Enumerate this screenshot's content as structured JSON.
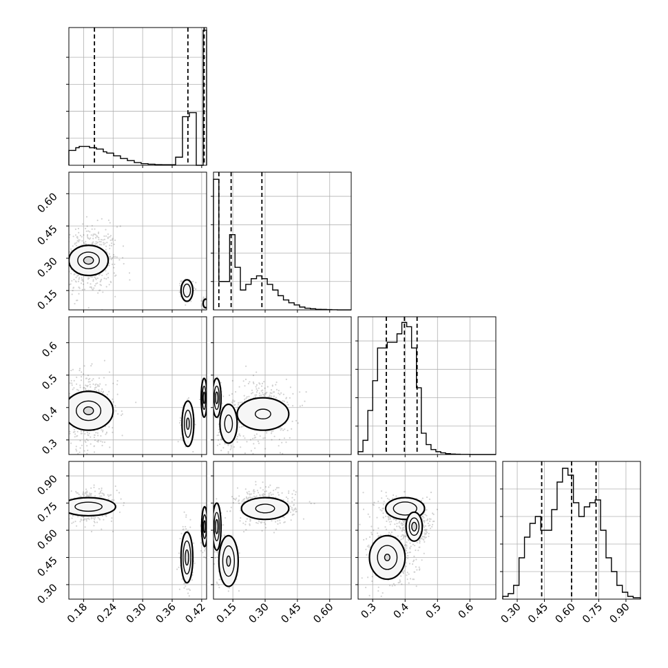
{
  "chart_data": {
    "type": "corner",
    "title": "",
    "n_params": 4,
    "grid": true,
    "params": [
      {
        "range": [
          0.15,
          0.43
        ],
        "ticks": [
          0.18,
          0.24,
          0.3,
          0.36,
          0.42
        ],
        "tick_labels": [
          "0.18",
          "0.24",
          "0.30",
          "0.36",
          "0.42"
        ],
        "quantiles": [
          0.202,
          0.392,
          0.425
        ],
        "hist": {
          "edges": [
            0.15,
            0.157,
            0.164,
            0.171,
            0.178,
            0.185,
            0.192,
            0.199,
            0.206,
            0.213,
            0.22,
            0.227,
            0.234,
            0.241,
            0.248,
            0.255,
            0.262,
            0.269,
            0.276,
            0.283,
            0.29,
            0.297,
            0.304,
            0.311,
            0.318,
            0.325,
            0.332,
            0.339,
            0.346,
            0.353,
            0.36,
            0.367,
            0.374,
            0.381,
            0.388,
            0.395,
            0.402,
            0.409,
            0.416,
            0.423,
            0.43
          ],
          "counts": [
            0.11,
            0.11,
            0.13,
            0.14,
            0.14,
            0.14,
            0.13,
            0.13,
            0.12,
            0.12,
            0.1,
            0.09,
            0.09,
            0.07,
            0.07,
            0.05,
            0.05,
            0.035,
            0.035,
            0.02,
            0.02,
            0.012,
            0.012,
            0.008,
            0.008,
            0.005,
            0.005,
            0.004,
            0.004,
            0.004,
            0.004,
            0.06,
            0.06,
            0.36,
            0.36,
            0.39,
            0.39,
            0.0,
            0.0,
            1.0
          ],
          "ymax": 1.02
        }
      },
      {
        "range": [
          0.06,
          0.7
        ],
        "ticks": [
          0.15,
          0.3,
          0.45,
          0.6
        ],
        "tick_labels": [
          "0.15",
          "0.30",
          "0.45",
          "0.60"
        ],
        "quantiles": [
          0.085,
          0.142,
          0.285
        ],
        "hist": {
          "edges": [
            0.06,
            0.085,
            0.11,
            0.135,
            0.16,
            0.185,
            0.21,
            0.235,
            0.26,
            0.285,
            0.31,
            0.335,
            0.36,
            0.385,
            0.41,
            0.435,
            0.46,
            0.485,
            0.51,
            0.535,
            0.56,
            0.585,
            0.61,
            0.635,
            0.66,
            0.685,
            0.7
          ],
          "counts": [
            0.92,
            0.2,
            0.2,
            0.53,
            0.3,
            0.14,
            0.18,
            0.22,
            0.24,
            0.22,
            0.18,
            0.14,
            0.1,
            0.07,
            0.05,
            0.035,
            0.02,
            0.012,
            0.008,
            0.004,
            0.003,
            0.002,
            0.001,
            0.0,
            0.0,
            0.0
          ],
          "ymax": 0.97
        }
      },
      {
        "range": [
          0.255,
          0.68
        ],
        "ticks": [
          0.3,
          0.4,
          0.5,
          0.6
        ],
        "tick_labels": [
          "0.3",
          "0.4",
          "0.5",
          "0.6"
        ],
        "quantiles": [
          0.342,
          0.398,
          0.437
        ],
        "hist": {
          "edges": [
            0.255,
            0.27,
            0.285,
            0.3,
            0.315,
            0.33,
            0.345,
            0.36,
            0.375,
            0.39,
            0.405,
            0.42,
            0.435,
            0.45,
            0.465,
            0.48,
            0.495,
            0.51,
            0.525,
            0.54,
            0.555,
            0.57,
            0.585,
            0.6,
            0.615,
            0.68
          ],
          "counts": [
            0.02,
            0.1,
            0.31,
            0.52,
            0.75,
            0.75,
            0.79,
            0.79,
            0.85,
            0.93,
            0.9,
            0.75,
            0.47,
            0.15,
            0.07,
            0.035,
            0.02,
            0.012,
            0.006,
            0.003,
            0.002,
            0.001,
            0.001,
            0.0,
            0.0
          ],
          "ymax": 0.97
        }
      },
      {
        "range": [
          0.22,
          0.98
        ],
        "ticks": [
          0.3,
          0.45,
          0.6,
          0.75,
          0.9
        ],
        "tick_labels": [
          "0.30",
          "0.45",
          "0.60",
          "0.75",
          "0.90"
        ],
        "quantiles": [
          0.435,
          0.6,
          0.735
        ],
        "hist": {
          "edges": [
            0.22,
            0.25,
            0.28,
            0.31,
            0.34,
            0.37,
            0.4,
            0.43,
            0.46,
            0.49,
            0.52,
            0.55,
            0.58,
            0.61,
            0.64,
            0.67,
            0.7,
            0.73,
            0.76,
            0.79,
            0.82,
            0.85,
            0.88,
            0.91,
            0.94,
            0.98
          ],
          "counts": [
            0.02,
            0.04,
            0.1,
            0.3,
            0.45,
            0.55,
            0.6,
            0.5,
            0.5,
            0.65,
            0.85,
            0.95,
            0.9,
            0.7,
            0.6,
            0.67,
            0.7,
            0.72,
            0.5,
            0.3,
            0.2,
            0.1,
            0.05,
            0.02,
            0.01
          ],
          "ymax": 1.0
        }
      }
    ],
    "hist_y_ticks": [
      0.2,
      0.4,
      0.6,
      0.8
    ],
    "pairs": [
      {
        "row": 1,
        "col": 0,
        "clusters": [
          {
            "center": [
              0.19,
              0.29
            ],
            "sd": [
              0.03,
              0.08
            ],
            "weight": 1.0
          },
          {
            "center": [
              0.39,
              0.16
            ],
            "sd": [
              0.006,
              0.02
            ],
            "weight": 0.35
          },
          {
            "center": [
              0.427,
              0.09
            ],
            "sd": [
              0.003,
              0.012
            ],
            "weight": 0.4
          }
        ],
        "contours": [
          {
            "center": [
              0.19,
              0.29
            ],
            "r": [
              0.04,
              0.07
            ],
            "levels": [
              1,
              0.55,
              0.25
            ]
          },
          {
            "center": [
              0.39,
              0.15
            ],
            "r": [
              0.012,
              0.05
            ],
            "levels": [
              1,
              0.6
            ]
          },
          {
            "center": [
              0.428,
              0.09
            ],
            "r": [
              0.005,
              0.02
            ],
            "levels": [
              1
            ]
          }
        ]
      },
      {
        "row": 2,
        "col": 0,
        "clusters": [
          {
            "center": [
              0.19,
              0.39
            ],
            "sd": [
              0.03,
              0.06
            ],
            "weight": 1.0
          },
          {
            "center": [
              0.39,
              0.35
            ],
            "sd": [
              0.006,
              0.03
            ],
            "weight": 0.4
          },
          {
            "center": [
              0.425,
              0.43
            ],
            "sd": [
              0.003,
              0.02
            ],
            "weight": 0.5
          }
        ],
        "contours": [
          {
            "center": [
              0.19,
              0.39
            ],
            "r": [
              0.05,
              0.06
            ],
            "levels": [
              1,
              0.5,
              0.2
            ]
          },
          {
            "center": [
              0.392,
              0.35
            ],
            "r": [
              0.012,
              0.07
            ],
            "levels": [
              1,
              0.6,
              0.25
            ]
          },
          {
            "center": [
              0.425,
              0.43
            ],
            "r": [
              0.006,
              0.06
            ],
            "levels": [
              1,
              0.6,
              0.3
            ]
          }
        ]
      },
      {
        "row": 2,
        "col": 1,
        "clusters": [
          {
            "center": [
              0.29,
              0.39
            ],
            "sd": [
              0.07,
              0.05
            ],
            "weight": 0.9
          },
          {
            "center": [
              0.12,
              0.34
            ],
            "sd": [
              0.02,
              0.035
            ],
            "weight": 0.5
          },
          {
            "center": [
              0.075,
              0.43
            ],
            "sd": [
              0.01,
              0.025
            ],
            "weight": 0.6
          }
        ],
        "contours": [
          {
            "center": [
              0.29,
              0.38
            ],
            "r": [
              0.12,
              0.05
            ],
            "levels": [
              1,
              0.3
            ]
          },
          {
            "center": [
              0.13,
              0.35
            ],
            "r": [
              0.04,
              0.06
            ],
            "levels": [
              1,
              0.45
            ]
          },
          {
            "center": [
              0.075,
              0.43
            ],
            "r": [
              0.02,
              0.06
            ],
            "levels": [
              1,
              0.6,
              0.3
            ]
          }
        ]
      },
      {
        "row": 3,
        "col": 0,
        "clusters": [
          {
            "center": [
              0.19,
              0.73
            ],
            "sd": [
              0.03,
              0.04
            ],
            "weight": 1.0
          },
          {
            "center": [
              0.39,
              0.46
            ],
            "sd": [
              0.006,
              0.08
            ],
            "weight": 0.45
          },
          {
            "center": [
              0.426,
              0.61
            ],
            "sd": [
              0.003,
              0.05
            ],
            "weight": 0.55
          }
        ],
        "contours": [
          {
            "center": [
              0.19,
              0.73
            ],
            "r": [
              0.055,
              0.05
            ],
            "levels": [
              1,
              0.5
            ]
          },
          {
            "center": [
              0.39,
              0.45
            ],
            "r": [
              0.012,
              0.14
            ],
            "levels": [
              1,
              0.65,
              0.3
            ]
          },
          {
            "center": [
              0.426,
              0.62
            ],
            "r": [
              0.006,
              0.11
            ],
            "levels": [
              1,
              0.6,
              0.3
            ]
          }
        ]
      },
      {
        "row": 3,
        "col": 1,
        "clusters": [
          {
            "center": [
              0.3,
              0.73
            ],
            "sd": [
              0.07,
              0.05
            ],
            "weight": 0.9
          },
          {
            "center": [
              0.12,
              0.44
            ],
            "sd": [
              0.025,
              0.07
            ],
            "weight": 0.55
          },
          {
            "center": [
              0.075,
              0.62
            ],
            "sd": [
              0.01,
              0.05
            ],
            "weight": 0.6
          }
        ],
        "contours": [
          {
            "center": [
              0.3,
              0.72
            ],
            "r": [
              0.11,
              0.06
            ],
            "levels": [
              1,
              0.4
            ]
          },
          {
            "center": [
              0.13,
              0.43
            ],
            "r": [
              0.045,
              0.14
            ],
            "levels": [
              1,
              0.6,
              0.2
            ]
          },
          {
            "center": [
              0.075,
              0.62
            ],
            "r": [
              0.02,
              0.13
            ],
            "levels": [
              1,
              0.6,
              0.3
            ]
          }
        ]
      },
      {
        "row": 3,
        "col": 2,
        "clusters": [
          {
            "center": [
              0.36,
              0.45
            ],
            "sd": [
              0.04,
              0.09
            ],
            "weight": 0.8
          },
          {
            "center": [
              0.4,
              0.7
            ],
            "sd": [
              0.04,
              0.05
            ],
            "weight": 0.7
          },
          {
            "center": [
              0.43,
              0.62
            ],
            "sd": [
              0.02,
              0.04
            ],
            "weight": 0.8
          }
        ],
        "contours": [
          {
            "center": [
              0.345,
              0.45
            ],
            "r": [
              0.055,
              0.12
            ],
            "levels": [
              1,
              0.55,
              0.15
            ]
          },
          {
            "center": [
              0.4,
              0.72
            ],
            "r": [
              0.06,
              0.06
            ],
            "levels": [
              1,
              0.6
            ]
          },
          {
            "center": [
              0.428,
              0.62
            ],
            "r": [
              0.025,
              0.08
            ],
            "levels": [
              1,
              0.6,
              0.3
            ]
          }
        ]
      }
    ]
  }
}
